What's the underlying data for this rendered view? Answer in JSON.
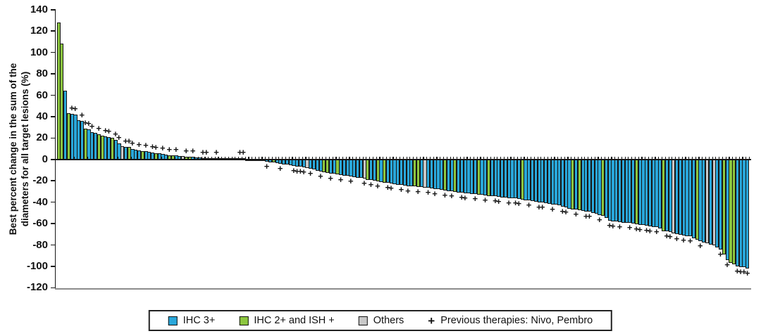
{
  "figure": {
    "background": "#ffffff"
  },
  "chart_data": {
    "type": "bar",
    "subtype": "waterfall",
    "title": "",
    "xlabel": "",
    "ylabel": "Best percent change in the sum of the diameters for all target lesions (%)",
    "ylabel_lines": [
      "Best percent change in the sum of the",
      "diameters for all target lesions (%)"
    ],
    "ylim": [
      -120,
      140
    ],
    "yticks": [
      140,
      120,
      100,
      80,
      60,
      40,
      20,
      0,
      -20,
      -40,
      -60,
      -80,
      -100,
      -120
    ],
    "grid": false,
    "legend_position": "bottom-boxed",
    "colors": {
      "IHC 3+": "#29A7DA",
      "IHC 2+ and ISH +": "#8CC63F",
      "Others": "#C8C8C8"
    },
    "color_codes": {
      "b": "IHC 3+",
      "g": "IHC 2+ and ISH +",
      "o": "Others"
    },
    "marker_meaning": "Previous therapies: Nivo, Pembro",
    "bars_format": [
      "best_percent_change",
      "color_code",
      "previous_therapy_plus"
    ],
    "bars": [
      [
        128,
        "g",
        0
      ],
      [
        108,
        "g",
        0
      ],
      [
        64,
        "b",
        0
      ],
      [
        43,
        "g",
        0
      ],
      [
        42.5,
        "b",
        1
      ],
      [
        42,
        "b",
        1
      ],
      [
        37,
        "b",
        0
      ],
      [
        36,
        "b",
        1
      ],
      [
        29,
        "g",
        1
      ],
      [
        28,
        "b",
        1
      ],
      [
        25.5,
        "b",
        1
      ],
      [
        25,
        "b",
        0
      ],
      [
        23.5,
        "g",
        1
      ],
      [
        22.5,
        "g",
        0
      ],
      [
        21.5,
        "b",
        1
      ],
      [
        21,
        "b",
        1
      ],
      [
        20.5,
        "g",
        0
      ],
      [
        18,
        "b",
        1
      ],
      [
        15,
        "b",
        1
      ],
      [
        12.5,
        "o",
        0
      ],
      [
        12,
        "b",
        1
      ],
      [
        11.5,
        "g",
        1
      ],
      [
        10,
        "b",
        1
      ],
      [
        9,
        "b",
        0
      ],
      [
        8.5,
        "b",
        1
      ],
      [
        8,
        "g",
        0
      ],
      [
        7.5,
        "b",
        1
      ],
      [
        7,
        "b",
        0
      ],
      [
        6.5,
        "b",
        1
      ],
      [
        6,
        "g",
        1
      ],
      [
        5.5,
        "b",
        0
      ],
      [
        5,
        "b",
        1
      ],
      [
        4.5,
        "b",
        0
      ],
      [
        4,
        "g",
        1
      ],
      [
        3.8,
        "g",
        0
      ],
      [
        3.5,
        "b",
        1
      ],
      [
        3.2,
        "b",
        0
      ],
      [
        3,
        "o",
        0
      ],
      [
        2.8,
        "g",
        1
      ],
      [
        2.5,
        "g",
        0
      ],
      [
        2.2,
        "b",
        1
      ],
      [
        2,
        "b",
        0
      ],
      [
        1.8,
        "b",
        0
      ],
      [
        1.5,
        "g",
        1
      ],
      [
        1.2,
        "b",
        1
      ],
      [
        1,
        "b",
        0
      ],
      [
        0.8,
        "b",
        0
      ],
      [
        0.7,
        "b",
        1
      ],
      [
        0.6,
        "g",
        0
      ],
      [
        0.5,
        "b",
        0
      ],
      [
        0.4,
        "b",
        0
      ],
      [
        0.3,
        "b",
        0
      ],
      [
        0.2,
        "g",
        0
      ],
      [
        0.1,
        "b",
        0
      ],
      [
        0,
        "b",
        1
      ],
      [
        0,
        "b",
        1
      ],
      [
        -0.1,
        "b",
        0
      ],
      [
        -0.2,
        "b",
        0
      ],
      [
        -0.3,
        "g",
        0
      ],
      [
        -0.5,
        "b",
        0
      ],
      [
        -0.8,
        "b",
        0
      ],
      [
        -1.5,
        "g",
        0
      ],
      [
        -2,
        "b",
        1
      ],
      [
        -2.5,
        "b",
        0
      ],
      [
        -3,
        "g",
        0
      ],
      [
        -3.5,
        "b",
        0
      ],
      [
        -4,
        "b",
        1
      ],
      [
        -4.5,
        "b",
        0
      ],
      [
        -5,
        "b",
        0
      ],
      [
        -5.5,
        "b",
        0
      ],
      [
        -6,
        "b",
        1
      ],
      [
        -6.5,
        "b",
        1
      ],
      [
        -7,
        "b",
        1
      ],
      [
        -7.5,
        "b",
        1
      ],
      [
        -8,
        "o",
        0
      ],
      [
        -8.5,
        "b",
        1
      ],
      [
        -9.5,
        "b",
        0
      ],
      [
        -10.5,
        "b",
        0
      ],
      [
        -11.5,
        "b",
        1
      ],
      [
        -12,
        "g",
        0
      ],
      [
        -12.5,
        "g",
        0
      ],
      [
        -13,
        "b",
        1
      ],
      [
        -13.5,
        "b",
        0
      ],
      [
        -14,
        "g",
        0
      ],
      [
        -14.5,
        "b",
        1
      ],
      [
        -15,
        "b",
        0
      ],
      [
        -15.5,
        "b",
        0
      ],
      [
        -16,
        "b",
        1
      ],
      [
        -16.5,
        "b",
        0
      ],
      [
        -17,
        "b",
        0
      ],
      [
        -17.5,
        "b",
        0
      ],
      [
        -18,
        "o",
        1
      ],
      [
        -19,
        "g",
        0
      ],
      [
        -19.5,
        "b",
        1
      ],
      [
        -20,
        "b",
        0
      ],
      [
        -20.5,
        "g",
        1
      ],
      [
        -21,
        "b",
        0
      ],
      [
        -21.5,
        "g",
        0
      ],
      [
        -22,
        "b",
        1
      ],
      [
        -22.5,
        "b",
        1
      ],
      [
        -23,
        "b",
        0
      ],
      [
        -23.5,
        "b",
        0
      ],
      [
        -24,
        "b",
        1
      ],
      [
        -24.5,
        "b",
        0
      ],
      [
        -24.8,
        "b",
        1
      ],
      [
        -25,
        "b",
        0
      ],
      [
        -25.3,
        "g",
        0
      ],
      [
        -25.6,
        "g",
        1
      ],
      [
        -26,
        "b",
        0
      ],
      [
        -26.3,
        "o",
        0
      ],
      [
        -26.6,
        "b",
        1
      ],
      [
        -27,
        "b",
        0
      ],
      [
        -27.5,
        "b",
        1
      ],
      [
        -28,
        "b",
        0
      ],
      [
        -28.5,
        "b",
        0
      ],
      [
        -29,
        "g",
        1
      ],
      [
        -29.5,
        "b",
        0
      ],
      [
        -30,
        "b",
        1
      ],
      [
        -30.5,
        "g",
        0
      ],
      [
        -31,
        "b",
        0
      ],
      [
        -31.3,
        "b",
        1
      ],
      [
        -31.6,
        "b",
        1
      ],
      [
        -32,
        "b",
        0
      ],
      [
        -32.3,
        "b",
        0
      ],
      [
        -32.6,
        "b",
        1
      ],
      [
        -33,
        "g",
        0
      ],
      [
        -33.3,
        "b",
        0
      ],
      [
        -33.6,
        "b",
        1
      ],
      [
        -34,
        "g",
        0
      ],
      [
        -34.3,
        "b",
        0
      ],
      [
        -34.6,
        "b",
        1
      ],
      [
        -35,
        "b",
        1
      ],
      [
        -35.3,
        "b",
        0
      ],
      [
        -35.6,
        "b",
        0
      ],
      [
        -36,
        "b",
        1
      ],
      [
        -36.3,
        "b",
        0
      ],
      [
        -36.6,
        "b",
        1
      ],
      [
        -37,
        "b",
        1
      ],
      [
        -37.5,
        "g",
        0
      ],
      [
        -38,
        "b",
        0
      ],
      [
        -38.5,
        "b",
        1
      ],
      [
        -39,
        "b",
        0
      ],
      [
        -39.5,
        "b",
        0
      ],
      [
        -40,
        "b",
        1
      ],
      [
        -40.5,
        "b",
        1
      ],
      [
        -41,
        "b",
        0
      ],
      [
        -41.5,
        "b",
        0
      ],
      [
        -42,
        "b",
        1
      ],
      [
        -42.5,
        "b",
        0
      ],
      [
        -43,
        "b",
        0
      ],
      [
        -44,
        "b",
        1
      ],
      [
        -45,
        "b",
        1
      ],
      [
        -46,
        "b",
        0
      ],
      [
        -46.5,
        "g",
        0
      ],
      [
        -47,
        "b",
        1
      ],
      [
        -47.5,
        "g",
        0
      ],
      [
        -48,
        "b",
        0
      ],
      [
        -48.5,
        "b",
        1
      ],
      [
        -49,
        "b",
        1
      ],
      [
        -50,
        "b",
        0
      ],
      [
        -51,
        "b",
        0
      ],
      [
        -52,
        "b",
        1
      ],
      [
        -53,
        "g",
        0
      ],
      [
        -55,
        "b",
        0
      ],
      [
        -57,
        "b",
        1
      ],
      [
        -58,
        "b",
        1
      ],
      [
        -58.3,
        "b",
        0
      ],
      [
        -58.6,
        "b",
        1
      ],
      [
        -59,
        "b",
        0
      ],
      [
        -59.3,
        "b",
        0
      ],
      [
        -59.6,
        "b",
        1
      ],
      [
        -60,
        "b",
        0
      ],
      [
        -60.5,
        "g",
        1
      ],
      [
        -61,
        "b",
        1
      ],
      [
        -61.5,
        "b",
        0
      ],
      [
        -62,
        "b",
        1
      ],
      [
        -62.5,
        "b",
        1
      ],
      [
        -63,
        "b",
        0
      ],
      [
        -63.5,
        "b",
        1
      ],
      [
        -64.5,
        "b",
        0
      ],
      [
        -67,
        "g",
        0
      ],
      [
        -67.5,
        "b",
        1
      ],
      [
        -68,
        "b",
        1
      ],
      [
        -69,
        "o",
        0
      ],
      [
        -70,
        "b",
        1
      ],
      [
        -70.5,
        "b",
        0
      ],
      [
        -71,
        "b",
        1
      ],
      [
        -71.5,
        "b",
        0
      ],
      [
        -72,
        "b",
        1
      ],
      [
        -73.5,
        "b",
        0
      ],
      [
        -75,
        "g",
        0
      ],
      [
        -76.5,
        "b",
        1
      ],
      [
        -77.5,
        "b",
        0
      ],
      [
        -78.5,
        "o",
        0
      ],
      [
        -79.5,
        "b",
        0
      ],
      [
        -80.5,
        "o",
        0
      ],
      [
        -82,
        "b",
        0
      ],
      [
        -84,
        "b",
        1
      ],
      [
        -89,
        "g",
        0
      ],
      [
        -94,
        "b",
        1
      ],
      [
        -97,
        "g",
        0
      ],
      [
        -98,
        "g",
        0
      ],
      [
        -100,
        "b",
        1
      ],
      [
        -100.5,
        "b",
        1
      ],
      [
        -101,
        "b",
        1
      ],
      [
        -102,
        "b",
        1
      ]
    ]
  },
  "legend": {
    "items": [
      {
        "label": "IHC 3+",
        "color": "#29A7DA"
      },
      {
        "label": "IHC 2+ and ISH +",
        "color": "#8CC63F"
      },
      {
        "label": "Others",
        "color": "#C8C8C8"
      }
    ],
    "marker": {
      "symbol": "+",
      "label": "Previous therapies: Nivo, Pembro"
    }
  }
}
